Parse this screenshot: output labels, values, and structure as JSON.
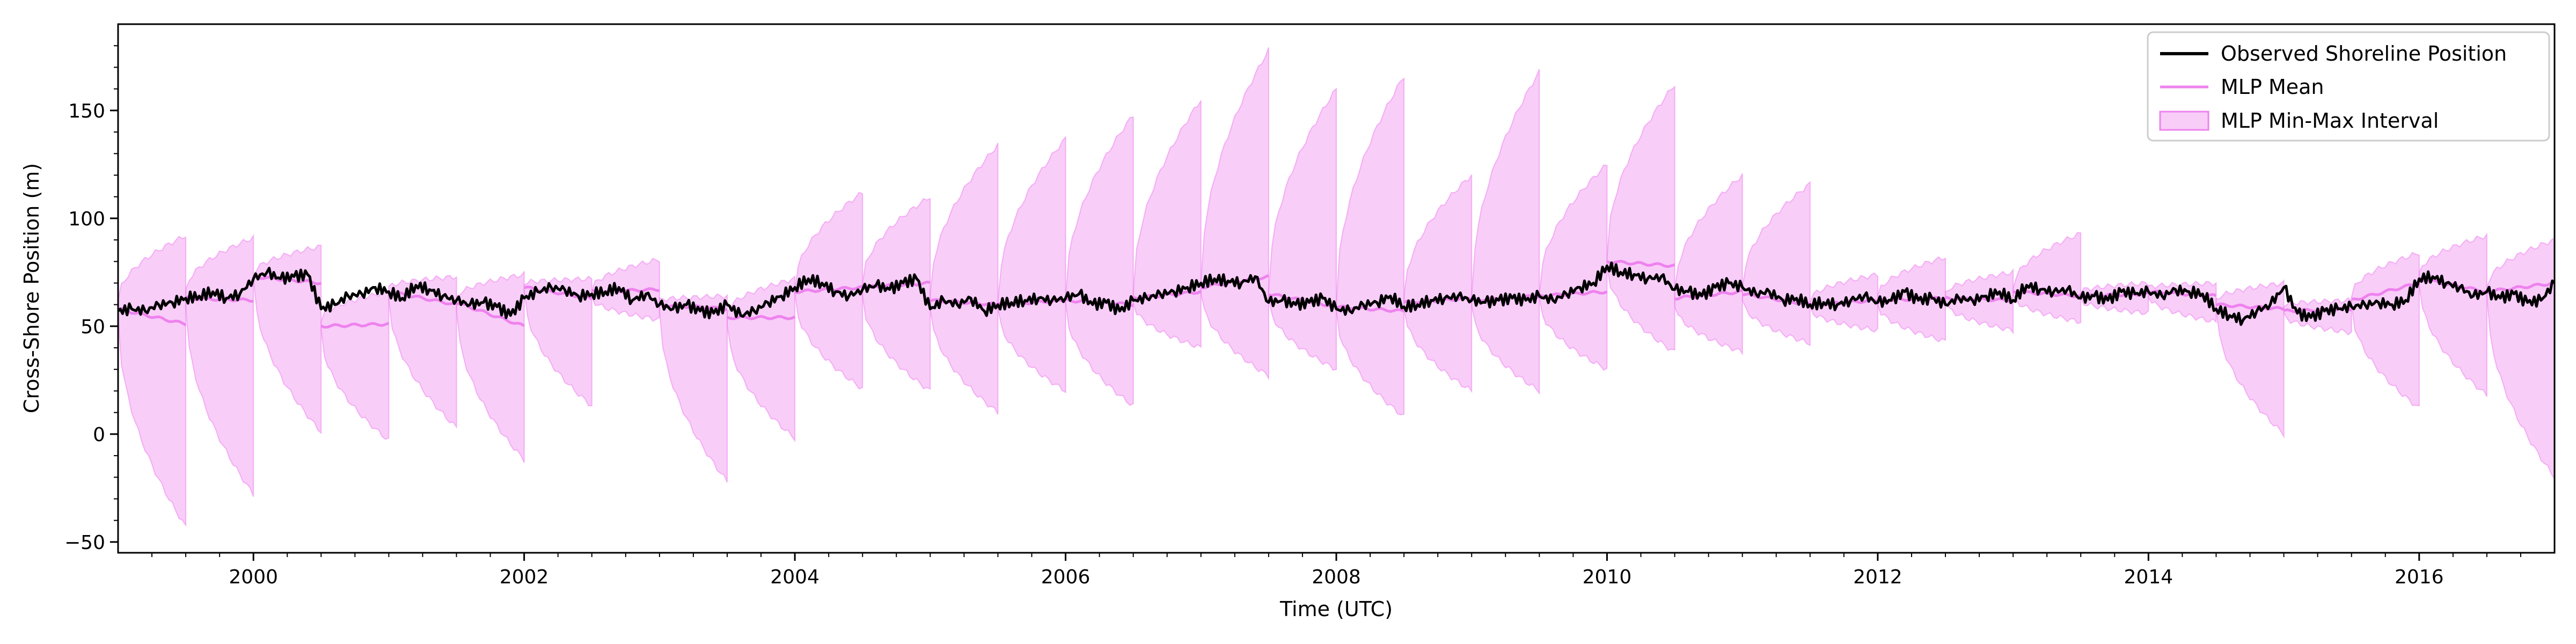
{
  "chart_data": {
    "type": "line",
    "xlabel": "Time (UTC)",
    "ylabel": "Cross-Shore Position (m)",
    "xlim": [
      1999.0,
      2017.0
    ],
    "ylim": [
      -55,
      190
    ],
    "x_ticks": [
      2000,
      2002,
      2004,
      2006,
      2008,
      2010,
      2012,
      2014,
      2016
    ],
    "x_tick_labels": [
      "2000",
      "2002",
      "2004",
      "2006",
      "2008",
      "2010",
      "2012",
      "2014",
      "2016"
    ],
    "y_ticks": [
      -50,
      0,
      50,
      100,
      150
    ],
    "y_tick_labels": [
      "−50",
      "0",
      "50",
      "100",
      "150"
    ],
    "grid": false,
    "legend_position": "top-right",
    "legend": [
      {
        "label": "Observed Shoreline Position",
        "kind": "line",
        "color": "#000000"
      },
      {
        "label": "MLP Mean",
        "kind": "line",
        "color": "#ee82ee"
      },
      {
        "label": "MLP Min-Max Interval",
        "kind": "band",
        "color": "#ee82ee"
      }
    ],
    "forecast_windows": [
      {
        "start": 1999.0,
        "end": 1999.5,
        "mean": [
          58,
          51
        ],
        "min": [
          55,
          -43
        ],
        "max": [
          62,
          92
        ]
      },
      {
        "start": 1999.5,
        "end": 2000.0,
        "mean": [
          63,
          62
        ],
        "min": [
          60,
          -28
        ],
        "max": [
          66,
          91
        ]
      },
      {
        "start": 2000.0,
        "end": 2000.5,
        "mean": [
          73,
          70
        ],
        "min": [
          72,
          1
        ],
        "max": [
          74,
          87
        ]
      },
      {
        "start": 2000.5,
        "end": 2001.0,
        "mean": [
          50,
          51
        ],
        "min": [
          48,
          -3
        ],
        "max": [
          53,
          66
        ]
      },
      {
        "start": 2001.0,
        "end": 2001.5,
        "mean": [
          66,
          60
        ],
        "min": [
          63,
          3
        ],
        "max": [
          68,
          73
        ]
      },
      {
        "start": 2001.5,
        "end": 2002.0,
        "mean": [
          61,
          50
        ],
        "min": [
          58,
          -12
        ],
        "max": [
          63,
          74
        ]
      },
      {
        "start": 2002.0,
        "end": 2002.5,
        "mean": [
          68,
          63
        ],
        "min": [
          66,
          13
        ],
        "max": [
          70,
          72
        ]
      },
      {
        "start": 2002.5,
        "end": 2003.0,
        "mean": [
          66,
          67
        ],
        "min": [
          63,
          53
        ],
        "max": [
          67,
          81
        ]
      },
      {
        "start": 2003.0,
        "end": 2003.5,
        "mean": [
          60,
          58
        ],
        "min": [
          58,
          -22
        ],
        "max": [
          62,
          64
        ]
      },
      {
        "start": 2003.5,
        "end": 2004.0,
        "mean": [
          54,
          54
        ],
        "min": [
          51,
          -2
        ],
        "max": [
          56,
          72
        ]
      },
      {
        "start": 2004.0,
        "end": 2004.5,
        "mean": [
          66,
          68
        ],
        "min": [
          64,
          21
        ],
        "max": [
          68,
          112
        ]
      },
      {
        "start": 2004.5,
        "end": 2005.0,
        "mean": [
          68,
          70
        ],
        "min": [
          64,
          20
        ],
        "max": [
          70,
          110
        ]
      },
      {
        "start": 2005.0,
        "end": 2005.5,
        "mean": [
          62,
          60
        ],
        "min": [
          59,
          10
        ],
        "max": [
          64,
          134
        ]
      },
      {
        "start": 2005.5,
        "end": 2006.0,
        "mean": [
          60,
          62
        ],
        "min": [
          58,
          20
        ],
        "max": [
          62,
          137
        ]
      },
      {
        "start": 2006.0,
        "end": 2006.5,
        "mean": [
          62,
          60
        ],
        "min": [
          60,
          13
        ],
        "max": [
          64,
          148
        ]
      },
      {
        "start": 2006.5,
        "end": 2007.0,
        "mean": [
          63,
          66
        ],
        "min": [
          61,
          40
        ],
        "max": [
          65,
          155
        ]
      },
      {
        "start": 2007.0,
        "end": 2007.5,
        "mean": [
          68,
          73
        ],
        "min": [
          66,
          27
        ],
        "max": [
          70,
          178
        ]
      },
      {
        "start": 2007.5,
        "end": 2008.0,
        "mean": [
          65,
          59
        ],
        "min": [
          62,
          30
        ],
        "max": [
          67,
          160
        ]
      },
      {
        "start": 2008.0,
        "end": 2008.5,
        "mean": [
          59,
          57
        ],
        "min": [
          57,
          8
        ],
        "max": [
          61,
          166
        ]
      },
      {
        "start": 2008.5,
        "end": 2009.0,
        "mean": [
          61,
          63
        ],
        "min": [
          59,
          20
        ],
        "max": [
          63,
          120
        ]
      },
      {
        "start": 2009.0,
        "end": 2009.5,
        "mean": [
          62,
          64
        ],
        "min": [
          60,
          20
        ],
        "max": [
          64,
          168
        ]
      },
      {
        "start": 2009.5,
        "end": 2010.0,
        "mean": [
          64,
          66
        ],
        "min": [
          62,
          30
        ],
        "max": [
          66,
          125
        ]
      },
      {
        "start": 2010.0,
        "end": 2010.5,
        "mean": [
          80,
          78
        ],
        "min": [
          78,
          38
        ],
        "max": [
          82,
          162
        ]
      },
      {
        "start": 2010.5,
        "end": 2011.0,
        "mean": [
          63,
          66
        ],
        "min": [
          60,
          38
        ],
        "max": [
          66,
          120
        ]
      },
      {
        "start": 2011.0,
        "end": 2011.5,
        "mean": [
          65,
          60
        ],
        "min": [
          62,
          42
        ],
        "max": [
          68,
          116
        ]
      },
      {
        "start": 2011.5,
        "end": 2012.0,
        "mean": [
          60,
          62
        ],
        "min": [
          58,
          48
        ],
        "max": [
          62,
          74
        ]
      },
      {
        "start": 2012.0,
        "end": 2012.5,
        "mean": [
          62,
          63
        ],
        "min": [
          60,
          43
        ],
        "max": [
          64,
          82
        ]
      },
      {
        "start": 2012.5,
        "end": 2013.0,
        "mean": [
          63,
          62
        ],
        "min": [
          61,
          48
        ],
        "max": [
          65,
          75
        ]
      },
      {
        "start": 2013.0,
        "end": 2013.5,
        "mean": [
          66,
          64
        ],
        "min": [
          64,
          52
        ],
        "max": [
          68,
          93
        ]
      },
      {
        "start": 2013.5,
        "end": 2014.0,
        "mean": [
          64,
          65
        ],
        "min": [
          62,
          56
        ],
        "max": [
          66,
          70
        ]
      },
      {
        "start": 2014.0,
        "end": 2014.5,
        "mean": [
          66,
          64
        ],
        "min": [
          64,
          52
        ],
        "max": [
          68,
          70
        ]
      },
      {
        "start": 2014.5,
        "end": 2015.0,
        "mean": [
          60,
          58
        ],
        "min": [
          58,
          0
        ],
        "max": [
          62,
          70
        ]
      },
      {
        "start": 2015.0,
        "end": 2015.5,
        "mean": [
          57,
          58
        ],
        "min": [
          55,
          47
        ],
        "max": [
          60,
          62
        ]
      },
      {
        "start": 2015.5,
        "end": 2016.0,
        "mean": [
          62,
          70
        ],
        "min": [
          60,
          12
        ],
        "max": [
          64,
          84
        ]
      },
      {
        "start": 2016.0,
        "end": 2016.5,
        "mean": [
          72,
          66
        ],
        "min": [
          70,
          18
        ],
        "max": [
          74,
          92
        ]
      },
      {
        "start": 2016.5,
        "end": 2017.0,
        "mean": [
          66,
          70
        ],
        "min": [
          64,
          -20
        ],
        "max": [
          68,
          90
        ]
      }
    ],
    "observed": {
      "x": [
        1999.0,
        1999.1,
        1999.2,
        1999.3,
        1999.4,
        1999.5,
        1999.6,
        1999.7,
        1999.8,
        1999.9,
        2000.0,
        2000.1,
        2000.2,
        2000.3,
        2000.4,
        2000.5,
        2000.6,
        2000.7,
        2000.8,
        2000.9,
        2001.0,
        2001.1,
        2001.2,
        2001.3,
        2001.4,
        2001.5,
        2001.6,
        2001.7,
        2001.8,
        2001.9,
        2002.0,
        2002.1,
        2002.2,
        2002.3,
        2002.4,
        2002.5,
        2002.6,
        2002.7,
        2002.8,
        2002.9,
        2003.0,
        2003.1,
        2003.2,
        2003.3,
        2003.4,
        2003.5,
        2003.6,
        2003.7,
        2003.8,
        2003.9,
        2004.0,
        2004.1,
        2004.2,
        2004.3,
        2004.4,
        2004.5,
        2004.6,
        2004.7,
        2004.8,
        2004.9,
        2005.0,
        2005.1,
        2005.2,
        2005.3,
        2005.4,
        2005.5,
        2005.6,
        2005.7,
        2005.8,
        2005.9,
        2006.0,
        2006.1,
        2006.2,
        2006.3,
        2006.4,
        2006.5,
        2006.6,
        2006.7,
        2006.8,
        2006.9,
        2007.0,
        2007.1,
        2007.2,
        2007.3,
        2007.4,
        2007.5,
        2007.6,
        2007.7,
        2007.8,
        2007.9,
        2008.0,
        2008.1,
        2008.2,
        2008.3,
        2008.4,
        2008.5,
        2008.6,
        2008.7,
        2008.8,
        2008.9,
        2009.0,
        2009.1,
        2009.2,
        2009.3,
        2009.4,
        2009.5,
        2009.6,
        2009.7,
        2009.8,
        2009.9,
        2010.0,
        2010.1,
        2010.2,
        2010.3,
        2010.4,
        2010.5,
        2010.6,
        2010.7,
        2010.8,
        2010.9,
        2011.0,
        2011.1,
        2011.2,
        2011.3,
        2011.4,
        2011.5,
        2011.6,
        2011.7,
        2011.8,
        2011.9,
        2012.0,
        2012.1,
        2012.2,
        2012.3,
        2012.4,
        2012.5,
        2012.6,
        2012.7,
        2012.8,
        2012.9,
        2013.0,
        2013.1,
        2013.2,
        2013.3,
        2013.4,
        2013.5,
        2013.6,
        2013.7,
        2013.8,
        2013.9,
        2014.0,
        2014.1,
        2014.2,
        2014.3,
        2014.4,
        2014.5,
        2014.6,
        2014.7,
        2014.8,
        2014.9,
        2015.0,
        2015.1,
        2015.2,
        2015.3,
        2015.4,
        2015.5,
        2015.6,
        2015.7,
        2015.8,
        2015.9,
        2016.0,
        2016.1,
        2016.2,
        2016.3,
        2016.4,
        2016.5,
        2016.6,
        2016.7,
        2016.8,
        2016.9,
        2017.0
      ],
      "y": [
        57,
        58,
        57,
        60,
        61,
        63,
        64,
        66,
        63,
        65,
        72,
        75,
        72,
        73,
        74,
        58,
        60,
        64,
        65,
        68,
        66,
        63,
        69,
        67,
        64,
        62,
        60,
        61,
        59,
        55,
        63,
        66,
        68,
        67,
        64,
        65,
        66,
        68,
        62,
        65,
        60,
        58,
        60,
        57,
        56,
        60,
        55,
        57,
        61,
        64,
        68,
        72,
        70,
        66,
        64,
        67,
        69,
        67,
        70,
        72,
        58,
        62,
        60,
        63,
        57,
        60,
        61,
        62,
        63,
        62,
        63,
        65,
        60,
        61,
        57,
        62,
        63,
        65,
        66,
        68,
        70,
        72,
        71,
        70,
        73,
        61,
        62,
        60,
        61,
        63,
        58,
        57,
        60,
        61,
        64,
        59,
        60,
        62,
        63,
        64,
        62,
        61,
        62,
        63,
        62,
        64,
        62,
        65,
        68,
        70,
        78,
        75,
        74,
        72,
        73,
        67,
        66,
        64,
        68,
        70,
        68,
        65,
        66,
        62,
        63,
        60,
        61,
        60,
        62,
        64,
        61,
        62,
        66,
        62,
        63,
        60,
        63,
        62,
        64,
        66,
        62,
        69,
        67,
        66,
        67,
        63,
        64,
        62,
        66,
        65,
        66,
        64,
        67,
        66,
        65,
        58,
        55,
        53,
        57,
        60,
        68,
        56,
        54,
        57,
        58,
        59,
        60,
        61,
        60,
        62,
        72,
        73,
        70,
        68,
        64,
        66,
        63,
        65,
        61,
        62,
        70
      ]
    }
  }
}
